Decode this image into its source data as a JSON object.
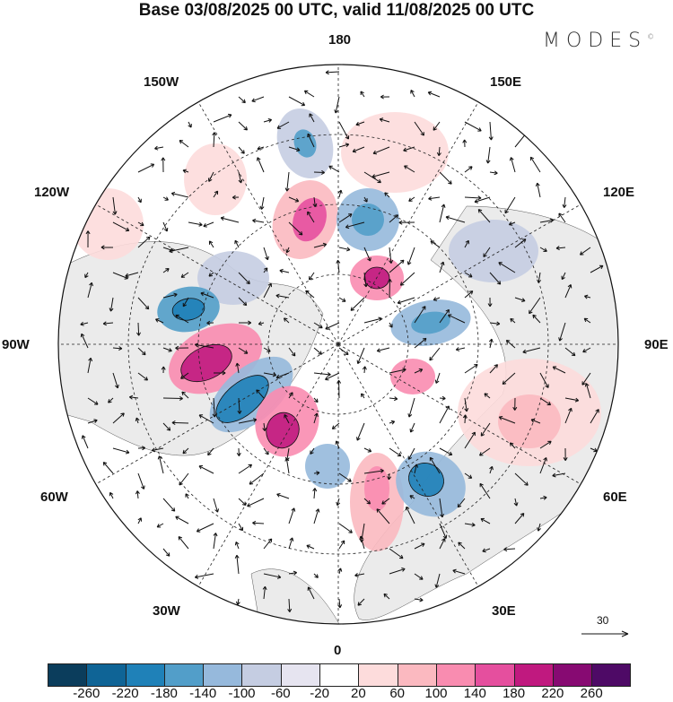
{
  "title": "Base 03/08/2025 00 UTC, valid 11/08/2025 00 UTC",
  "logo": {
    "text": "MODES",
    "mark": "©"
  },
  "map": {
    "projection": "north-polar-stereographic",
    "longitude_labels": [
      "180",
      "150E",
      "120E",
      "90E",
      "60E",
      "30E",
      "0",
      "30W",
      "60W",
      "90W",
      "120W",
      "150W"
    ],
    "land_color": "#ebebeb"
  },
  "vector_reference": {
    "label": "30"
  },
  "colorbar": {
    "colors": [
      "#0b3d5c",
      "#0f6496",
      "#1f81b8",
      "#529ec9",
      "#96b9dc",
      "#c5cde2",
      "#e6e4f0",
      "#ffffff",
      "#fddcdc",
      "#fbb9c0",
      "#f98cb0",
      "#e54f9e",
      "#c0197f",
      "#870a72",
      "#4e0a66"
    ],
    "ticks": [
      "-260",
      "-220",
      "-180",
      "-140",
      "-100",
      "-60",
      "-20",
      "20",
      "60",
      "100",
      "140",
      "180",
      "220",
      "260"
    ]
  }
}
